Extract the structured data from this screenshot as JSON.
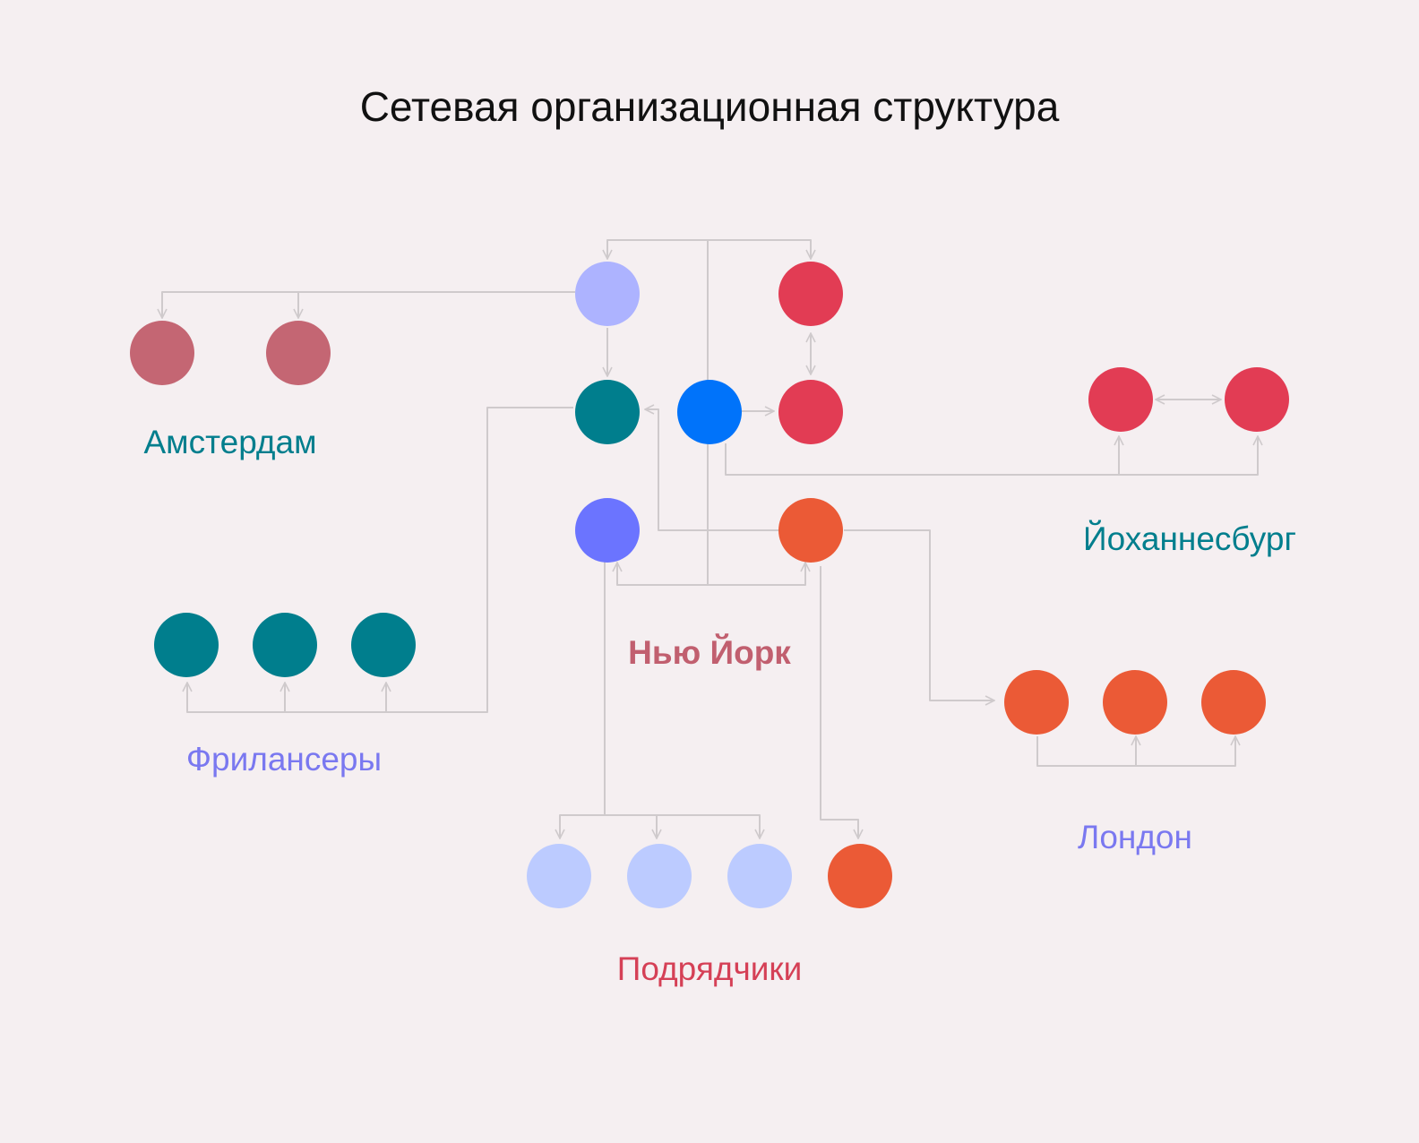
{
  "title": "Сетевая организационная структура",
  "labels": {
    "amsterdam": "Амстердам",
    "johannesburg": "Йоханнесбург",
    "new_york": "Нью Йорк",
    "freelancers": "Фрилансеры",
    "london": "Лондон",
    "contractors": "Подрядчики"
  },
  "colors": {
    "background": "#f5eff1",
    "line": "#cfcacc",
    "teal": "#007e8d",
    "lavender": "#adb3ff",
    "periwinkle": "#6b74ff",
    "pale_blue": "#bccbff",
    "blue": "#0073fa",
    "red": "#e23c54",
    "rose": "#c46673",
    "orange": "#eb5a36",
    "label_purple": "#7a78f0",
    "label_rose": "#c15f6f",
    "label_red": "#d54056"
  }
}
